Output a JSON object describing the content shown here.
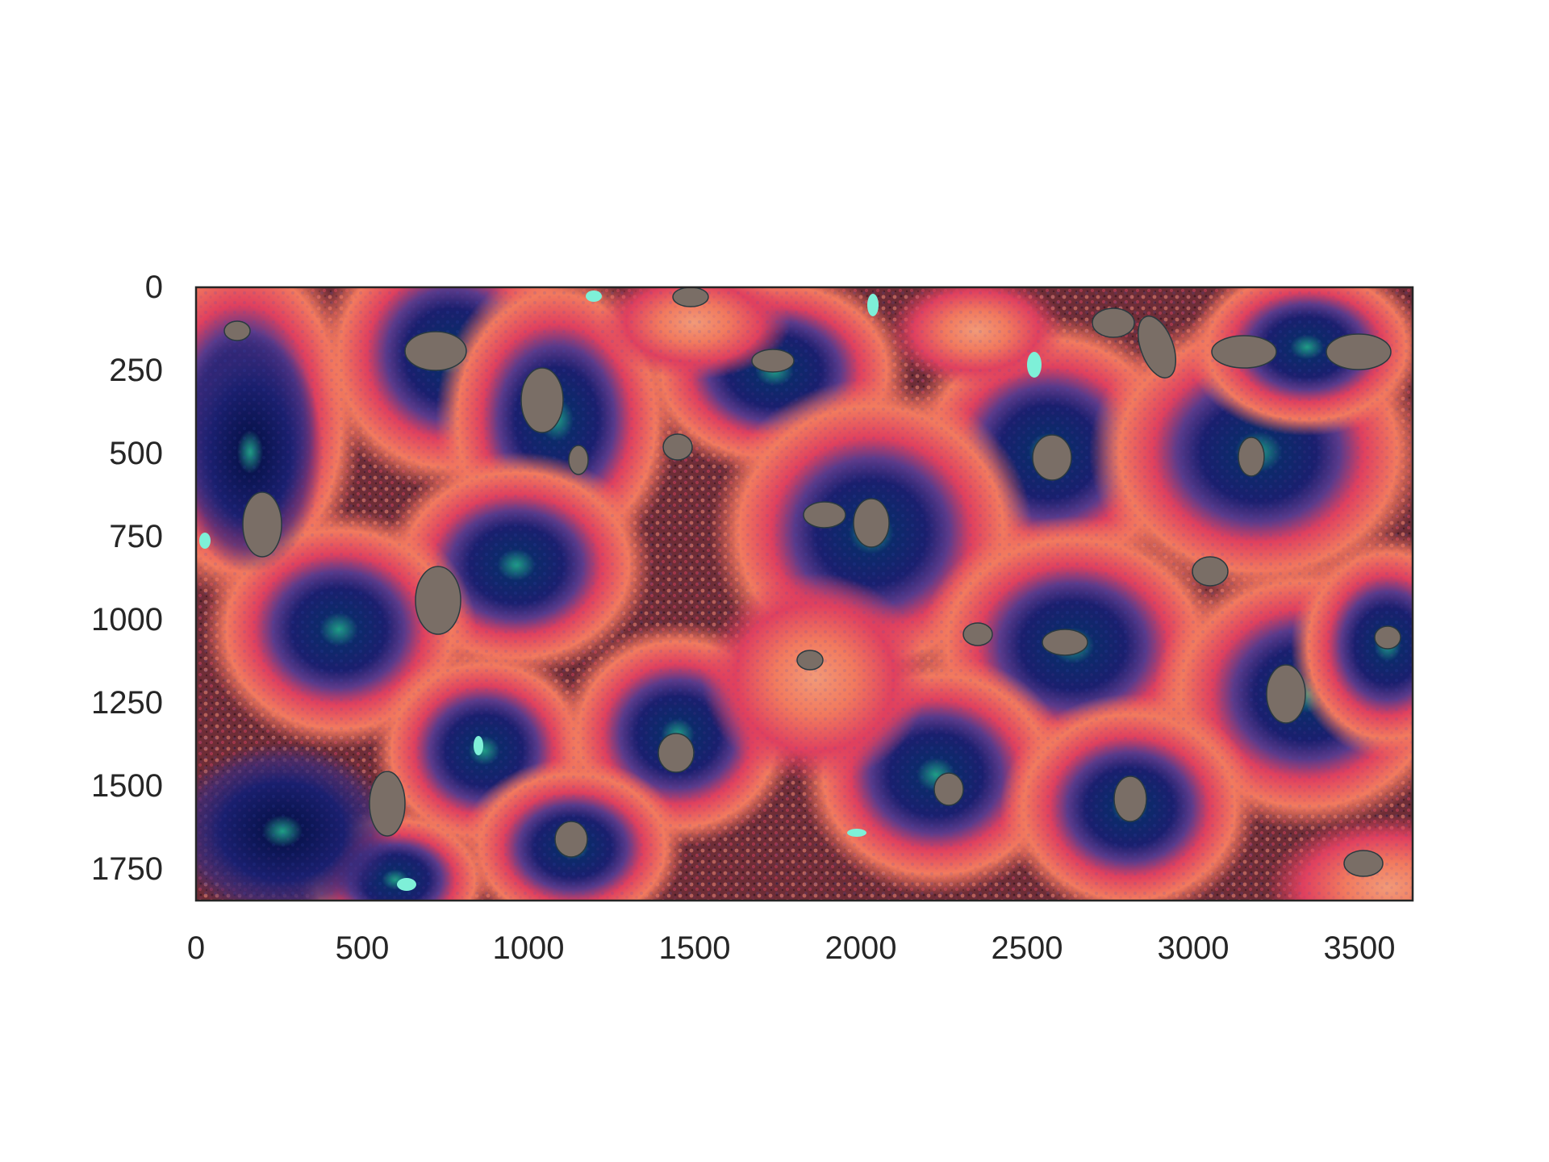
{
  "figure": {
    "background": "#ffffff",
    "frame_color": "#262626",
    "image": {
      "description_kind": "fluorescence microscopy tissue section",
      "palette": {
        "background_tissue": "#6e2d36",
        "salmon": "#f06a5c",
        "pink": "#e0405e",
        "navy": "#1a1f6e",
        "purple": "#5a3a8a",
        "teal": "#1f9e86",
        "cyan": "#7ef0d8",
        "lumen_gray": "#7a6e66"
      }
    },
    "x_axis": {
      "range": [
        0,
        3660
      ],
      "ticks": [
        0,
        500,
        1000,
        1500,
        2000,
        2500,
        3000,
        3500
      ],
      "tick_labels": [
        "0",
        "500",
        "1000",
        "1500",
        "2000",
        "2500",
        "3000",
        "3500"
      ]
    },
    "y_axis": {
      "range": [
        0,
        1850
      ],
      "inverted": true,
      "ticks": [
        0,
        250,
        500,
        750,
        1000,
        1250,
        1500,
        1750
      ],
      "tick_labels": [
        "0",
        "250",
        "500",
        "750",
        "1000",
        "1250",
        "1500",
        "1750"
      ]
    }
  }
}
